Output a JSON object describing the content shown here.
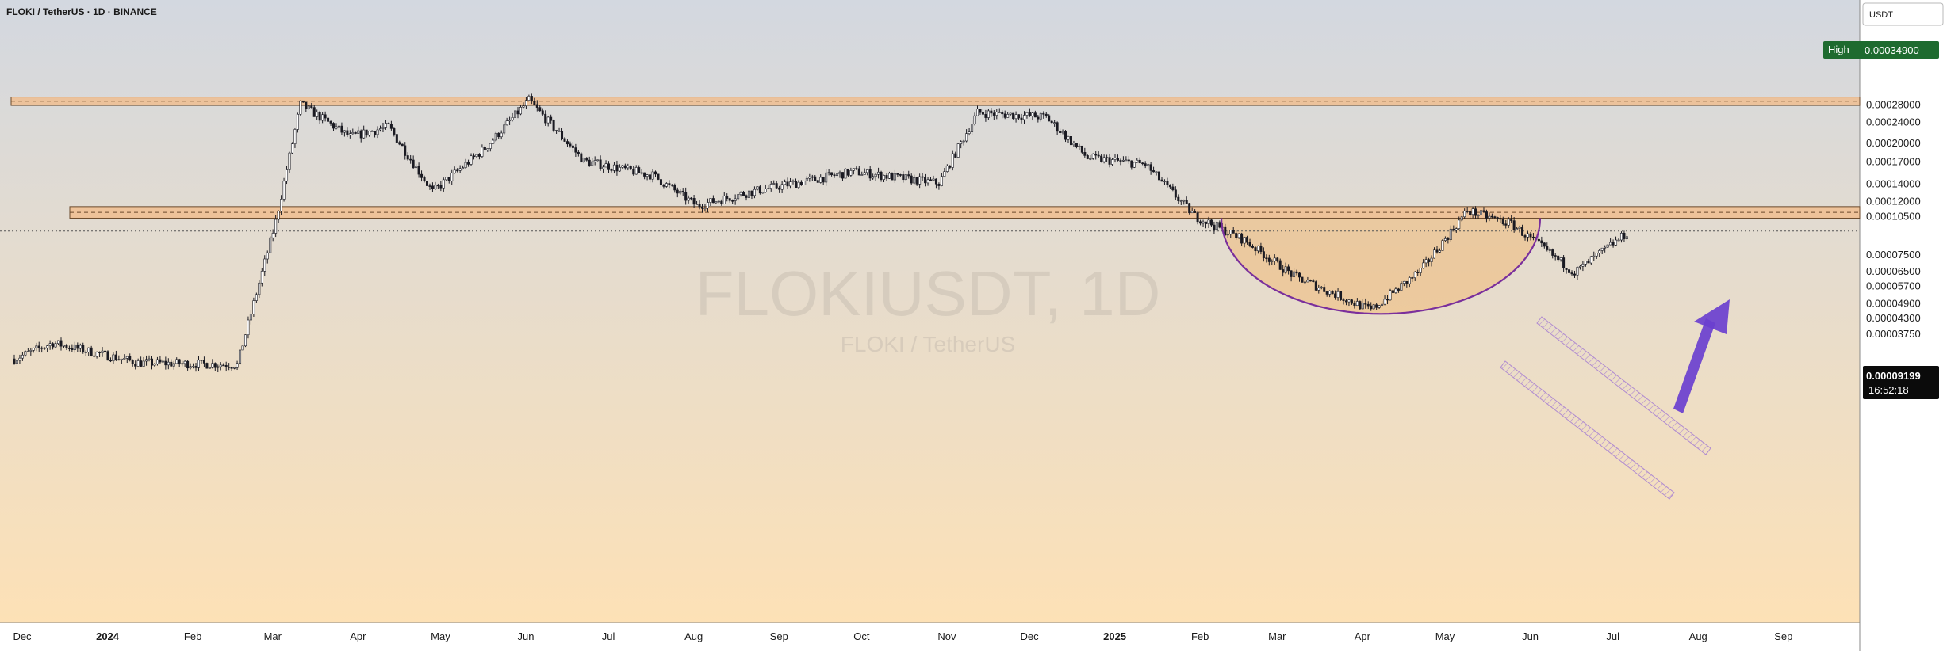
{
  "header": {
    "symbol_title": "FLOKI / TetherUS · 1D · BINANCE",
    "currency_button": "USDT"
  },
  "watermark": {
    "ticker": "FLOKIUSDT, 1D",
    "pair": "FLOKI / TetherUS"
  },
  "price_axis": {
    "high_label": "High",
    "high_value": "0.00034900",
    "last_price": "0.00009199",
    "countdown": "16:52:18"
  },
  "colors": {
    "background_top": "#d3d8e0",
    "background_bottom": "#fde1b6",
    "candle": "#1a1a22",
    "zone_fill": "#f1b985",
    "zone_border": "#6b4a2b",
    "cup_line": "#7a2f9c",
    "cup_fill": "#f0b979",
    "channel": "#b08bd0",
    "arrow": "#6a3fcf",
    "high_badge": "#1e6b2f",
    "price_badge": "#0b0b0b"
  },
  "chart_data": {
    "type": "candlestick",
    "scale": "log",
    "interval": "1D",
    "y_ticks": [
      "0.00028000",
      "0.00024000",
      "0.00020000",
      "0.00017000",
      "0.00014000",
      "0.00012000",
      "0.00010500",
      "0.00007500",
      "0.00006500",
      "0.00005700",
      "0.00004900",
      "0.00004300",
      "0.00003750"
    ],
    "x_labels": [
      "Dec",
      "2024",
      "Feb",
      "Mar",
      "Apr",
      "May",
      "Jun",
      "Jul",
      "Aug",
      "Sep",
      "Oct",
      "Nov",
      "Dec",
      "2025",
      "Feb",
      "Mar",
      "Apr",
      "May",
      "Jun",
      "Jul",
      "Aug",
      "Sep"
    ],
    "approx_close_path": [
      {
        "date": "2023-12-01",
        "close": 3e-05
      },
      {
        "date": "2023-12-15",
        "close": 3.45e-05
      },
      {
        "date": "2024-01-15",
        "close": 2.9e-05
      },
      {
        "date": "2024-02-20",
        "close": 2.85e-05
      },
      {
        "date": "2024-03-05",
        "close": 0.0001
      },
      {
        "date": "2024-03-14",
        "close": 0.00028
      },
      {
        "date": "2024-04-01",
        "close": 0.00021
      },
      {
        "date": "2024-04-15",
        "close": 0.00023
      },
      {
        "date": "2024-05-01",
        "close": 0.00013
      },
      {
        "date": "2024-05-20",
        "close": 0.00019
      },
      {
        "date": "2024-06-05",
        "close": 0.00029
      },
      {
        "date": "2024-06-25",
        "close": 0.00017
      },
      {
        "date": "2024-07-20",
        "close": 0.00015
      },
      {
        "date": "2024-08-05",
        "close": 0.000115
      },
      {
        "date": "2024-08-25",
        "close": 0.00013
      },
      {
        "date": "2024-10-01",
        "close": 0.000155
      },
      {
        "date": "2024-11-01",
        "close": 0.00014
      },
      {
        "date": "2024-11-15",
        "close": 0.00026
      },
      {
        "date": "2024-12-10",
        "close": 0.00025
      },
      {
        "date": "2024-12-25",
        "close": 0.000175
      },
      {
        "date": "2025-01-15",
        "close": 0.000165
      },
      {
        "date": "2025-02-02",
        "close": 0.000105
      },
      {
        "date": "2025-02-20",
        "close": 8.5e-05
      },
      {
        "date": "2025-03-10",
        "close": 6.2e-05
      },
      {
        "date": "2025-04-07",
        "close": 4.6e-05
      },
      {
        "date": "2025-04-25",
        "close": 6.5e-05
      },
      {
        "date": "2025-05-12",
        "close": 0.00011
      },
      {
        "date": "2025-05-28",
        "close": 9.8e-05
      },
      {
        "date": "2025-06-20",
        "close": 6.4e-05
      },
      {
        "date": "2025-07-10",
        "close": 9.2e-05
      }
    ],
    "annotations": {
      "resistance_zone": [
        0.000277,
        0.000298
      ],
      "support_zone": [
        0.000103,
        0.000114
      ],
      "pattern": "cup (rounded bottom) with descending channel handle",
      "arrow": "bullish breakout projection"
    }
  }
}
